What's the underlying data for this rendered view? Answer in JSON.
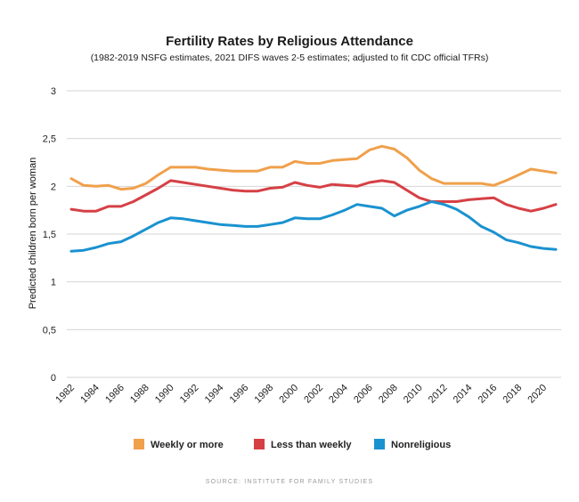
{
  "chart_data": {
    "type": "line",
    "title": "Fertility Rates by Religious Attendance",
    "subtitle": "(1982-2019 NSFG estimates, 2021 DIFS waves 2-5 estimates; adjusted to fit CDC official TFRs)",
    "xlabel": "",
    "ylabel": "Predicted children born per woman",
    "ylim": [
      0,
      3
    ],
    "xlim": [
      1982,
      2021
    ],
    "y_ticks": [
      "0",
      "0,5",
      "1",
      "1,5",
      "2",
      "2,5",
      "3"
    ],
    "y_tick_values": [
      0,
      0.5,
      1,
      1.5,
      2,
      2.5,
      3
    ],
    "x_ticks": [
      "1982",
      "1984",
      "1986",
      "1988",
      "1990",
      "1992",
      "1994",
      "1996",
      "1998",
      "2000",
      "2002",
      "2004",
      "2006",
      "2008",
      "2010",
      "2012",
      "2014",
      "2016",
      "2018",
      "2020"
    ],
    "x_tick_values": [
      1982,
      1984,
      1986,
      1988,
      1990,
      1992,
      1994,
      1996,
      1998,
      2000,
      2002,
      2004,
      2006,
      2008,
      2010,
      2012,
      2014,
      2016,
      2018,
      2020
    ],
    "grid": true,
    "legend_position": "bottom",
    "x": [
      1982,
      1983,
      1984,
      1985,
      1986,
      1987,
      1988,
      1989,
      1990,
      1991,
      1992,
      1993,
      1994,
      1995,
      1996,
      1997,
      1998,
      1999,
      2000,
      2001,
      2002,
      2003,
      2004,
      2005,
      2006,
      2007,
      2008,
      2009,
      2010,
      2011,
      2012,
      2013,
      2014,
      2015,
      2016,
      2017,
      2018,
      2019,
      2020,
      2021
    ],
    "series": [
      {
        "name": "Weekly or more",
        "color": "#f0a04b",
        "values": [
          2.08,
          2.01,
          2.0,
          2.01,
          1.97,
          1.98,
          2.03,
          2.12,
          2.2,
          2.2,
          2.2,
          2.18,
          2.17,
          2.16,
          2.16,
          2.16,
          2.2,
          2.2,
          2.26,
          2.24,
          2.24,
          2.27,
          2.28,
          2.29,
          2.38,
          2.42,
          2.39,
          2.3,
          2.17,
          2.08,
          2.03,
          2.03,
          2.03,
          2.03,
          2.01,
          2.06,
          2.12,
          2.18,
          2.16,
          2.14
        ]
      },
      {
        "name": "Less than weekly",
        "color": "#d64045",
        "values": [
          1.76,
          1.74,
          1.74,
          1.79,
          1.79,
          1.84,
          1.91,
          1.98,
          2.06,
          2.04,
          2.02,
          2.0,
          1.98,
          1.96,
          1.95,
          1.95,
          1.98,
          1.99,
          2.04,
          2.01,
          1.99,
          2.02,
          2.01,
          2.0,
          2.04,
          2.06,
          2.04,
          1.96,
          1.88,
          1.84,
          1.84,
          1.84,
          1.86,
          1.87,
          1.88,
          1.81,
          1.77,
          1.74,
          1.77,
          1.81
        ]
      },
      {
        "name": "Nonreligious",
        "color": "#1a92d0",
        "values": [
          1.32,
          1.33,
          1.36,
          1.4,
          1.42,
          1.48,
          1.55,
          1.62,
          1.67,
          1.66,
          1.64,
          1.62,
          1.6,
          1.59,
          1.58,
          1.58,
          1.6,
          1.62,
          1.67,
          1.66,
          1.66,
          1.7,
          1.75,
          1.81,
          1.79,
          1.77,
          1.69,
          1.75,
          1.79,
          1.84,
          1.81,
          1.76,
          1.68,
          1.58,
          1.52,
          1.44,
          1.41,
          1.37,
          1.35,
          1.34
        ]
      }
    ]
  },
  "source": "SOURCE: INSTITUTE FOR FAMILY STUDIES"
}
